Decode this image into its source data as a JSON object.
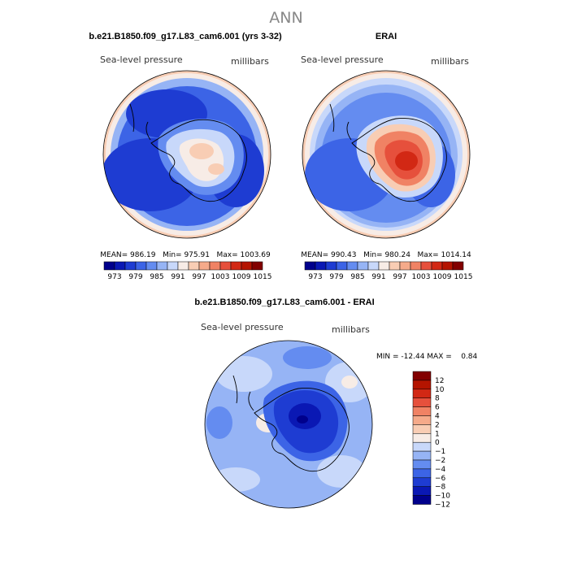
{
  "figure_title": "ANN",
  "chart_data": [
    {
      "type": "contour_map",
      "projection": "south-polar stereographic",
      "title": "b.e21.B1850.f09_g17.L83_cam6.001 (yrs 3-32)",
      "left_label": "Sea-level pressure",
      "right_label": "millibars",
      "stats": "MEAN= 986.19   Min= 975.91   Max= 1003.69",
      "mean": 986.19,
      "min": 975.91,
      "max": 1003.69,
      "colorbar": {
        "levels": [
          973,
          976,
          979,
          982,
          985,
          988,
          991,
          994,
          997,
          1000,
          1003,
          1006,
          1009,
          1012,
          1015
        ],
        "labels": [
          "973",
          "979",
          "985",
          "991",
          "997",
          "1003",
          "1009",
          "1015"
        ],
        "colors": [
          "#00008c",
          "#0a18b4",
          "#1e3cd2",
          "#3c64e6",
          "#648cf0",
          "#96b4f5",
          "#c8d8fa",
          "#f7ece6",
          "#f8cdb4",
          "#f5aa8a",
          "#f08264",
          "#e6503c",
          "#d22814",
          "#b41400",
          "#820000"
        ]
      }
    },
    {
      "type": "contour_map",
      "projection": "south-polar stereographic",
      "title": "ERAI",
      "left_label": "Sea-level pressure",
      "right_label": "millibars",
      "stats": "MEAN= 990.43   Min= 980.24   Max= 1014.14",
      "mean": 990.43,
      "min": 980.24,
      "max": 1014.14,
      "colorbar": {
        "levels": [
          973,
          976,
          979,
          982,
          985,
          988,
          991,
          994,
          997,
          1000,
          1003,
          1006,
          1009,
          1012,
          1015
        ],
        "labels": [
          "973",
          "979",
          "985",
          "991",
          "997",
          "1003",
          "1009",
          "1015"
        ],
        "colors": [
          "#00008c",
          "#0a18b4",
          "#1e3cd2",
          "#3c64e6",
          "#648cf0",
          "#96b4f5",
          "#c8d8fa",
          "#f7ece6",
          "#f8cdb4",
          "#f5aa8a",
          "#f08264",
          "#e6503c",
          "#d22814",
          "#b41400",
          "#820000"
        ]
      }
    },
    {
      "type": "contour_map",
      "projection": "south-polar stereographic",
      "title": "b.e21.B1850.f09_g17.L83_cam6.001 - ERAI",
      "left_label": "Sea-level pressure",
      "right_label": "millibars",
      "stats": "MIN = -12.44 MAX =    0.84",
      "min": -12.44,
      "max": 0.84,
      "colorbar": {
        "levels": [
          -12,
          -10,
          -8,
          -6,
          -4,
          -2,
          -1,
          0,
          1,
          2,
          4,
          6,
          8,
          10,
          12
        ],
        "labels": [
          "12",
          "10",
          "8",
          "6",
          "4",
          "2",
          "1",
          "0",
          "−1",
          "−2",
          "−4",
          "−6",
          "−8",
          "−10",
          "−12"
        ],
        "colors": [
          "#820000",
          "#b41400",
          "#d22814",
          "#e6503c",
          "#f08264",
          "#f5aa8a",
          "#f8cdb4",
          "#f7ece6",
          "#c8d8fa",
          "#96b4f5",
          "#648cf0",
          "#3c64e6",
          "#1e3cd2",
          "#0a18b4",
          "#00008c"
        ]
      }
    }
  ]
}
